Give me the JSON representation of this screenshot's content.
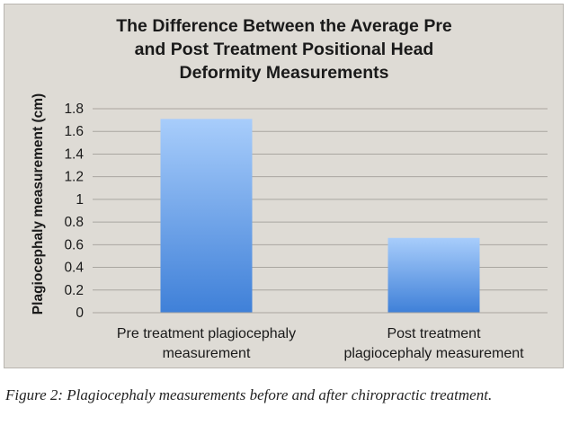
{
  "chart_data": {
    "type": "bar",
    "title_lines": [
      "The Difference Between the Average Pre",
      "and Post Treatment Positional Head",
      "Deformity Measurements"
    ],
    "ylabel": "Plagiocephaly measurement (cm)",
    "xlabel": "",
    "categories": [
      [
        "Pre treatment plagiocephaly",
        "measurement"
      ],
      [
        "Post treatment",
        "plagiocephaly measurement"
      ]
    ],
    "values": [
      1.71,
      0.66
    ],
    "ylim": [
      0,
      1.8
    ],
    "yticks": [
      "0",
      "0.2",
      "0.4",
      "0.6",
      "0.8",
      "1",
      "1.2",
      "1.4",
      "1.6",
      "1.8"
    ],
    "grid": true,
    "legend": "none",
    "colors": {
      "bar_top": "#a8cdfb",
      "bar_bottom": "#3f80d8",
      "background": "#dedbd5",
      "gridline": "#a9a6a0"
    }
  },
  "caption": "Figure 2: Plagiocephaly measurements before and after chiropractic treatment."
}
